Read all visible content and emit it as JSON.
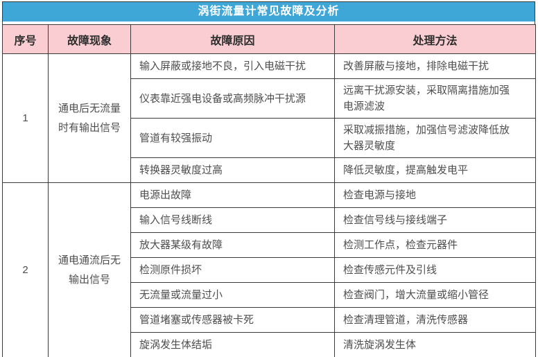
{
  "table": {
    "title": "涡街流量计常见故障及分析",
    "columns": [
      "序号",
      "故障现象",
      "故障原因",
      "处理方法"
    ],
    "sections": [
      {
        "no": "1",
        "phenomenon": "通电后无流量时有输出信号",
        "rows": [
          {
            "cause": "输入屏蔽或接地不良，引入电磁干扰",
            "method": "改善屏蔽与接地，排除电磁干扰"
          },
          {
            "cause": "仪表靠近强电设备或高频脉冲干扰源",
            "method": "远离干扰源安装，采取隔离措施加强电源滤波"
          },
          {
            "cause": "管道有较强振动",
            "method": "采取减振措施，加强信号滤波降低放大器灵敏度"
          },
          {
            "cause": "转换器灵敏度过高",
            "method": "降低灵敏度，提高触发电平"
          }
        ]
      },
      {
        "no": "2",
        "phenomenon": "通电通流后无输出信号",
        "rows": [
          {
            "cause": "电源出故障",
            "method": "检查电源与接地"
          },
          {
            "cause": "输入信号线断线",
            "method": "检查信号线与接线端子"
          },
          {
            "cause": "放大器某级有故障",
            "method": "检测工作点，检查元器件"
          },
          {
            "cause": "检测原件损坏",
            "method": "检查传感元件及引线"
          },
          {
            "cause": "无流量或流量过小",
            "method": "检查阀门，增大流量或缩小管径"
          },
          {
            "cause": "管道堵塞或传感器被卡死",
            "method": "检查清理管道，清洗传感器"
          },
          {
            "cause": "旋涡发生体结垢",
            "method": "清洗旋涡发生体"
          }
        ]
      }
    ],
    "colors": {
      "title_bg": "#3FA6D8",
      "title_text": "#FFFFFF",
      "header_bg": "#F9CDD1",
      "header_text": "#2E2E2E",
      "body_text": "#4E4E4E",
      "border": "#3A3A3A"
    }
  }
}
